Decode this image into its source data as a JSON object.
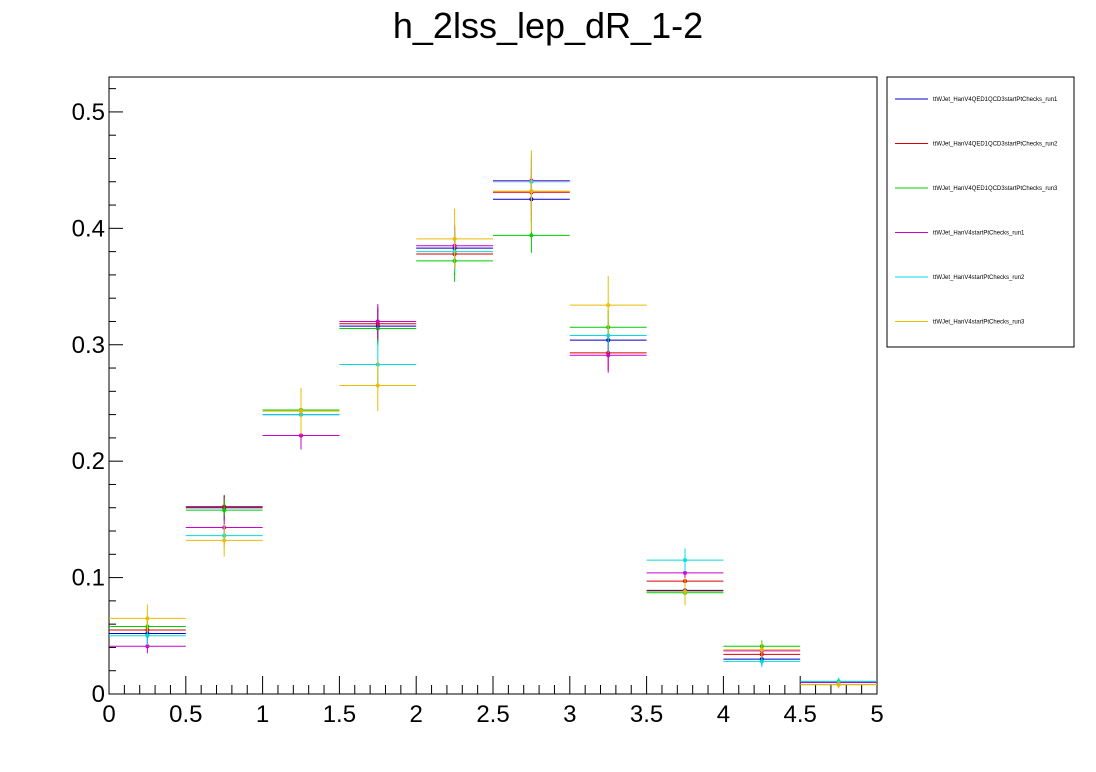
{
  "chart_data": {
    "type": "step-histogram-errorbars",
    "title": "h_2lss_lep_dR_1-2",
    "xlabel": "",
    "ylabel": "",
    "xlim": [
      0,
      5
    ],
    "ylim": [
      0,
      0.53
    ],
    "x_ticks": [
      "0",
      "0.5",
      "1",
      "1.5",
      "2",
      "2.5",
      "3",
      "3.5",
      "4",
      "4.5",
      "5"
    ],
    "y_ticks": [
      "0",
      "0.1",
      "0.2",
      "0.3",
      "0.4",
      "0.5"
    ],
    "bin_edges": [
      0,
      0.5,
      1,
      1.5,
      2,
      2.5,
      3,
      3.5,
      4,
      4.5,
      5
    ],
    "legend_position": "right",
    "series": [
      {
        "name": "ttWJet_HanV4QED1QCD3startPtChecks_run1",
        "color": "#0000cc",
        "values": [
          0.052,
          0.16,
          0.24,
          0.316,
          0.383,
          0.425,
          0.304,
          0.089,
          0.03,
          0.01
        ],
        "errors": [
          0.008,
          0.01,
          0.012,
          0.015,
          0.018,
          0.02,
          0.015,
          0.007,
          0.005,
          0.003
        ]
      },
      {
        "name": "ttWJet_HanV4QED1QCD3startPtChecks_run2",
        "color": "#dd0000",
        "values": [
          0.055,
          0.161,
          0.222,
          0.318,
          0.378,
          0.431,
          0.293,
          0.097,
          0.034,
          0.01
        ],
        "errors": [
          0.008,
          0.01,
          0.012,
          0.015,
          0.018,
          0.02,
          0.015,
          0.008,
          0.005,
          0.003
        ]
      },
      {
        "name": "ttWJet_HanV4QED1QCD3startPtChecks_run3",
        "color": "#00cc00",
        "values": [
          0.058,
          0.158,
          0.244,
          0.314,
          0.372,
          0.394,
          0.315,
          0.087,
          0.041,
          0.008
        ],
        "errors": [
          0.008,
          0.01,
          0.012,
          0.015,
          0.018,
          0.015,
          0.015,
          0.007,
          0.005,
          0.003
        ]
      },
      {
        "name": "ttWJet_HanV4startPtChecks_run1",
        "color": "#cc00cc",
        "values": [
          0.041,
          0.143,
          0.222,
          0.32,
          0.385,
          0.441,
          0.291,
          0.104,
          0.037,
          0.01
        ],
        "errors": [
          0.006,
          0.01,
          0.012,
          0.015,
          0.018,
          0.02,
          0.015,
          0.008,
          0.005,
          0.003
        ]
      },
      {
        "name": "ttWJet_HanV4startPtChecks_run2",
        "color": "#00dddd",
        "values": [
          0.05,
          0.136,
          0.24,
          0.283,
          0.38,
          0.44,
          0.308,
          0.115,
          0.028,
          0.011
        ],
        "errors": [
          0.008,
          0.01,
          0.012,
          0.02,
          0.018,
          0.025,
          0.015,
          0.01,
          0.005,
          0.003
        ]
      },
      {
        "name": "ttWJet_HanV4startPtChecks_run3",
        "color": "#eebb00",
        "values": [
          0.065,
          0.132,
          0.243,
          0.265,
          0.391,
          0.432,
          0.334,
          0.088,
          0.038,
          0.008
        ],
        "errors": [
          0.012,
          0.014,
          0.02,
          0.022,
          0.026,
          0.035,
          0.025,
          0.012,
          0.007,
          0.003
        ]
      }
    ]
  }
}
